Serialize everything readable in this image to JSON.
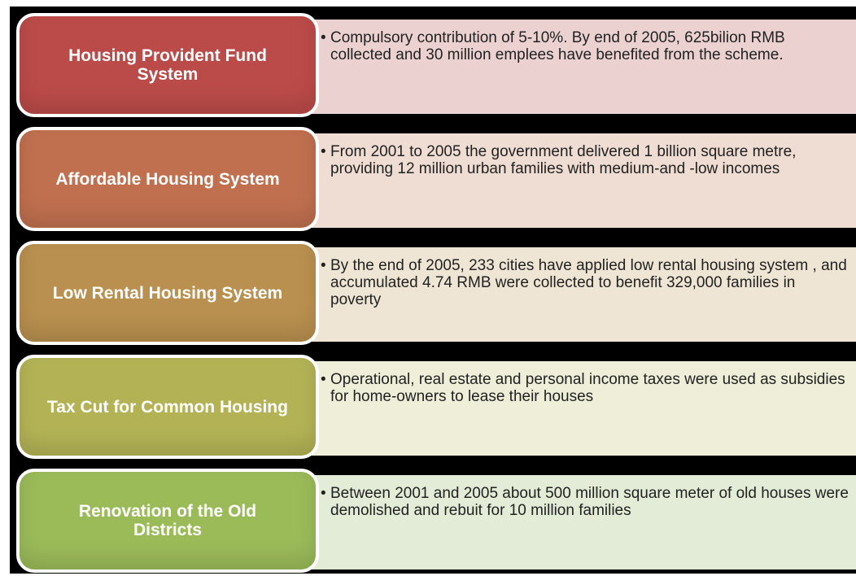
{
  "items": [
    {
      "label": "Housing Provident Fund System",
      "text": "Compulsory contribution of 5-10%. By end of 2005, 625bilion RMB collected and 30 million emplees have benefited from the scheme."
    },
    {
      "label": "Affordable Housing System",
      "text": "From 2001 to 2005 the government delivered 1 billion square metre, providing 12 million urban families with medium-and -low incomes"
    },
    {
      "label": "Low Rental Housing System",
      "text": "By the end of 2005, 233 cities have applied low rental housing system , and accumulated 4.74 RMB were collected to benefit 329,000 families in poverty"
    },
    {
      "label": "Tax Cut for Common Housing",
      "text": "Operational, real estate and personal income taxes were used as subsidies for home-owners to lease their houses"
    },
    {
      "label": "Renovation of the Old Districts",
      "text": "Between 2001 and 2005 about 500 million square meter of old houses were demolished and rebuit for 10 million families"
    }
  ]
}
